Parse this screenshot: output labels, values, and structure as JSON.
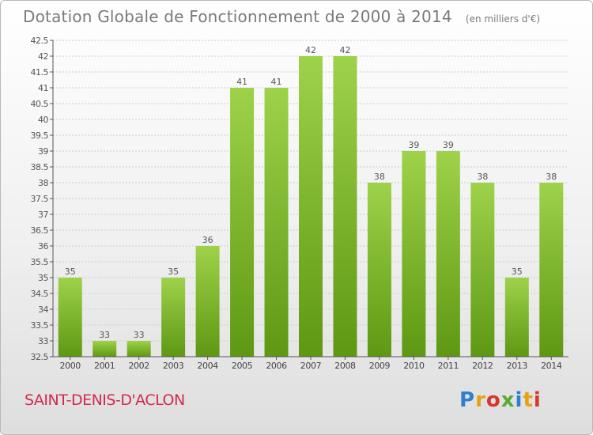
{
  "title": "Dotation Globale de Fonctionnement de 2000 à 2014",
  "unit_note": "(en milliers d'€)",
  "commune": "SAINT-DENIS-D'ACLON",
  "logo": {
    "text": "Proxiti",
    "colors": [
      "#2e7fd0",
      "#e2a414",
      "#d8372c",
      "#59ab37"
    ]
  },
  "colors": {
    "bar_light": "#9ed24a",
    "bar_dark": "#5e9812",
    "axis": "#555555",
    "grid": "#cccccc",
    "commune": "#d12a4e"
  },
  "chart_data": {
    "type": "bar",
    "title": "Dotation Globale de Fonctionnement de 2000 à 2014",
    "xlabel": "",
    "ylabel": "",
    "categories": [
      "2000",
      "2001",
      "2002",
      "2003",
      "2004",
      "2005",
      "2006",
      "2007",
      "2008",
      "2009",
      "2010",
      "2011",
      "2012",
      "2013",
      "2014"
    ],
    "values": [
      35,
      33,
      33,
      35,
      36,
      41,
      41,
      42,
      42,
      38,
      39,
      39,
      38,
      35,
      38
    ],
    "value_labels": [
      "35",
      "33",
      "33",
      "35",
      "36",
      "41",
      "41",
      "42",
      "42",
      "38",
      "39",
      "39",
      "38",
      "35",
      "38"
    ],
    "ylim": [
      32.5,
      42.5
    ],
    "yticks": [
      32.5,
      33,
      33.5,
      34,
      34.5,
      35,
      35.5,
      36,
      36.5,
      37,
      37.5,
      38,
      38.5,
      39,
      39.5,
      40,
      40.5,
      41,
      41.5,
      42,
      42.5
    ],
    "ytick_labels": [
      "32.5",
      "33",
      "33.5",
      "34",
      "34.5",
      "35",
      "35.5",
      "36",
      "36.5",
      "37",
      "37.5",
      "38",
      "38.5",
      "39",
      "39.5",
      "40",
      "40.5",
      "41",
      "41.5",
      "42",
      "42.5"
    ],
    "grid": true
  }
}
